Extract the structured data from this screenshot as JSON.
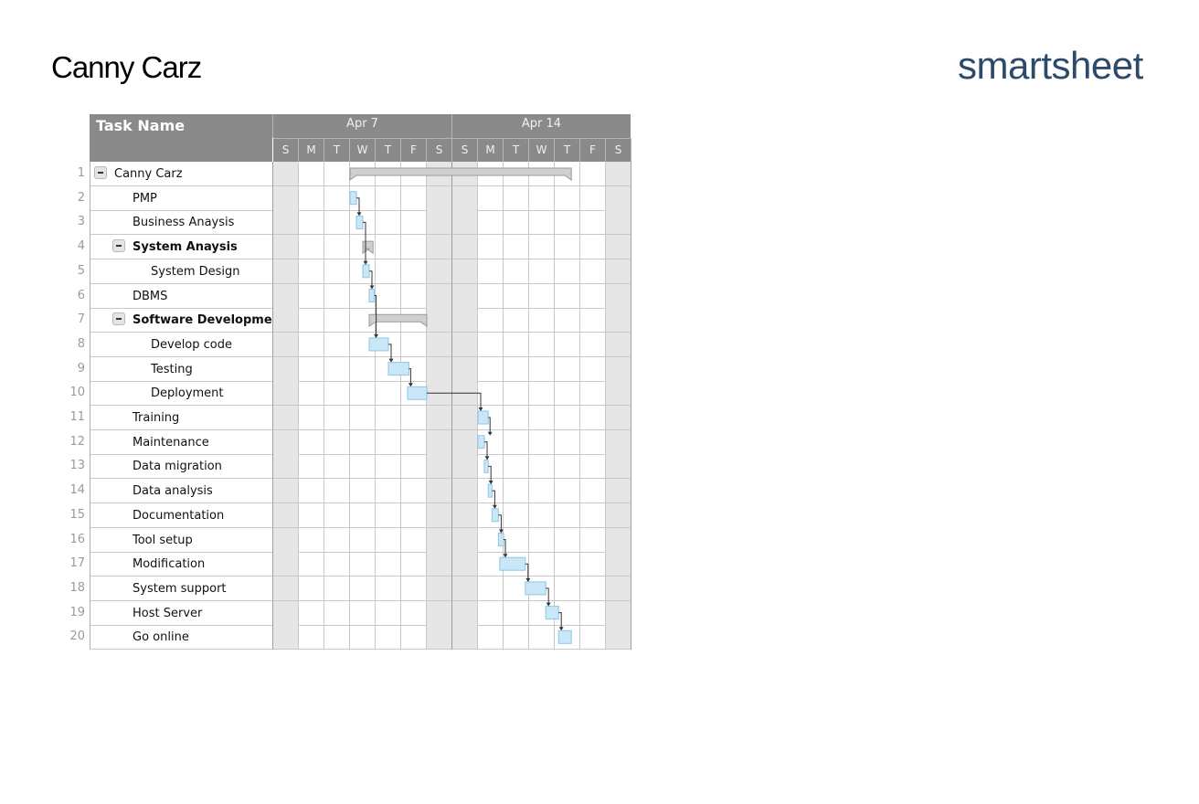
{
  "document": {
    "title": "Canny Carz"
  },
  "logo": {
    "text": "smartsheet"
  },
  "gantt": {
    "header": {
      "task_col": "Task Name",
      "weeks": [
        "Apr 7",
        "Apr 14"
      ],
      "days": [
        "S",
        "M",
        "T",
        "W",
        "T",
        "F",
        "S",
        "S",
        "M",
        "T",
        "W",
        "T",
        "F",
        "S"
      ]
    },
    "rows": [
      {
        "num": "1",
        "name": "Canny Carz",
        "level": 0,
        "bold": false,
        "parent": true
      },
      {
        "num": "2",
        "name": "PMP",
        "level": 1,
        "bold": false,
        "parent": false
      },
      {
        "num": "3",
        "name": "Business Anaysis",
        "level": 1,
        "bold": false,
        "parent": false
      },
      {
        "num": "4",
        "name": "System Anaysis",
        "level": 1,
        "bold": true,
        "parent": true
      },
      {
        "num": "5",
        "name": "System Design",
        "level": 2,
        "bold": false,
        "parent": false
      },
      {
        "num": "6",
        "name": "DBMS",
        "level": 1,
        "bold": false,
        "parent": false
      },
      {
        "num": "7",
        "name": "Software Developmen",
        "level": 1,
        "bold": true,
        "parent": true
      },
      {
        "num": "8",
        "name": "Develop code",
        "level": 2,
        "bold": false,
        "parent": false
      },
      {
        "num": "9",
        "name": "Testing",
        "level": 2,
        "bold": false,
        "parent": false
      },
      {
        "num": "10",
        "name": "Deployment",
        "level": 2,
        "bold": false,
        "parent": false
      },
      {
        "num": "11",
        "name": "Training",
        "level": 1,
        "bold": false,
        "parent": false
      },
      {
        "num": "12",
        "name": "Maintenance",
        "level": 1,
        "bold": false,
        "parent": false
      },
      {
        "num": "13",
        "name": "Data migration",
        "level": 1,
        "bold": false,
        "parent": false
      },
      {
        "num": "14",
        "name": "Data analysis",
        "level": 1,
        "bold": false,
        "parent": false
      },
      {
        "num": "15",
        "name": "Documentation",
        "level": 1,
        "bold": false,
        "parent": false
      },
      {
        "num": "16",
        "name": "Tool setup",
        "level": 1,
        "bold": false,
        "parent": false
      },
      {
        "num": "17",
        "name": "Modification",
        "level": 1,
        "bold": false,
        "parent": false
      },
      {
        "num": "18",
        "name": "System support",
        "level": 1,
        "bold": false,
        "parent": false
      },
      {
        "num": "19",
        "name": "Host Server",
        "level": 1,
        "bold": false,
        "parent": false
      },
      {
        "num": "20",
        "name": "Go online",
        "level": 1,
        "bold": false,
        "parent": false
      }
    ],
    "bars": [
      {
        "row": 1,
        "start": 3.0,
        "end": 11.65,
        "summary": true
      },
      {
        "row": 2,
        "start": 3.0,
        "end": 3.25
      },
      {
        "row": 3,
        "start": 3.25,
        "end": 3.5
      },
      {
        "row": 4,
        "start": 3.5,
        "end": 3.9,
        "summary": true
      },
      {
        "row": 5,
        "start": 3.5,
        "end": 3.75
      },
      {
        "row": 6,
        "start": 3.75,
        "end": 3.95
      },
      {
        "row": 7,
        "start": 3.75,
        "end": 6.0,
        "summary": true
      },
      {
        "row": 8,
        "start": 3.75,
        "end": 4.5
      },
      {
        "row": 9,
        "start": 4.5,
        "end": 5.3
      },
      {
        "row": 10,
        "start": 5.25,
        "end": 6.0
      },
      {
        "row": 11,
        "start": 8.0,
        "end": 8.4
      },
      {
        "row": 12,
        "start": 8.0,
        "end": 8.25
      },
      {
        "row": 13,
        "start": 8.25,
        "end": 8.4
      },
      {
        "row": 14,
        "start": 8.4,
        "end": 8.55
      },
      {
        "row": 15,
        "start": 8.55,
        "end": 8.8
      },
      {
        "row": 16,
        "start": 8.8,
        "end": 9.0
      },
      {
        "row": 17,
        "start": 8.85,
        "end": 9.85
      },
      {
        "row": 18,
        "start": 9.85,
        "end": 10.65
      },
      {
        "row": 19,
        "start": 10.65,
        "end": 11.15
      },
      {
        "row": 20,
        "start": 11.15,
        "end": 11.65
      }
    ],
    "colors": {
      "header_bg": "#8a8a8a",
      "bar_fill": "#c9e7f7",
      "bar_stroke": "#8fc6e6",
      "summary_fill": "#cfcfcf",
      "summary_stroke": "#9a9a9a",
      "weekend_bg": "#e6e6e6",
      "connector": "#333333"
    }
  }
}
